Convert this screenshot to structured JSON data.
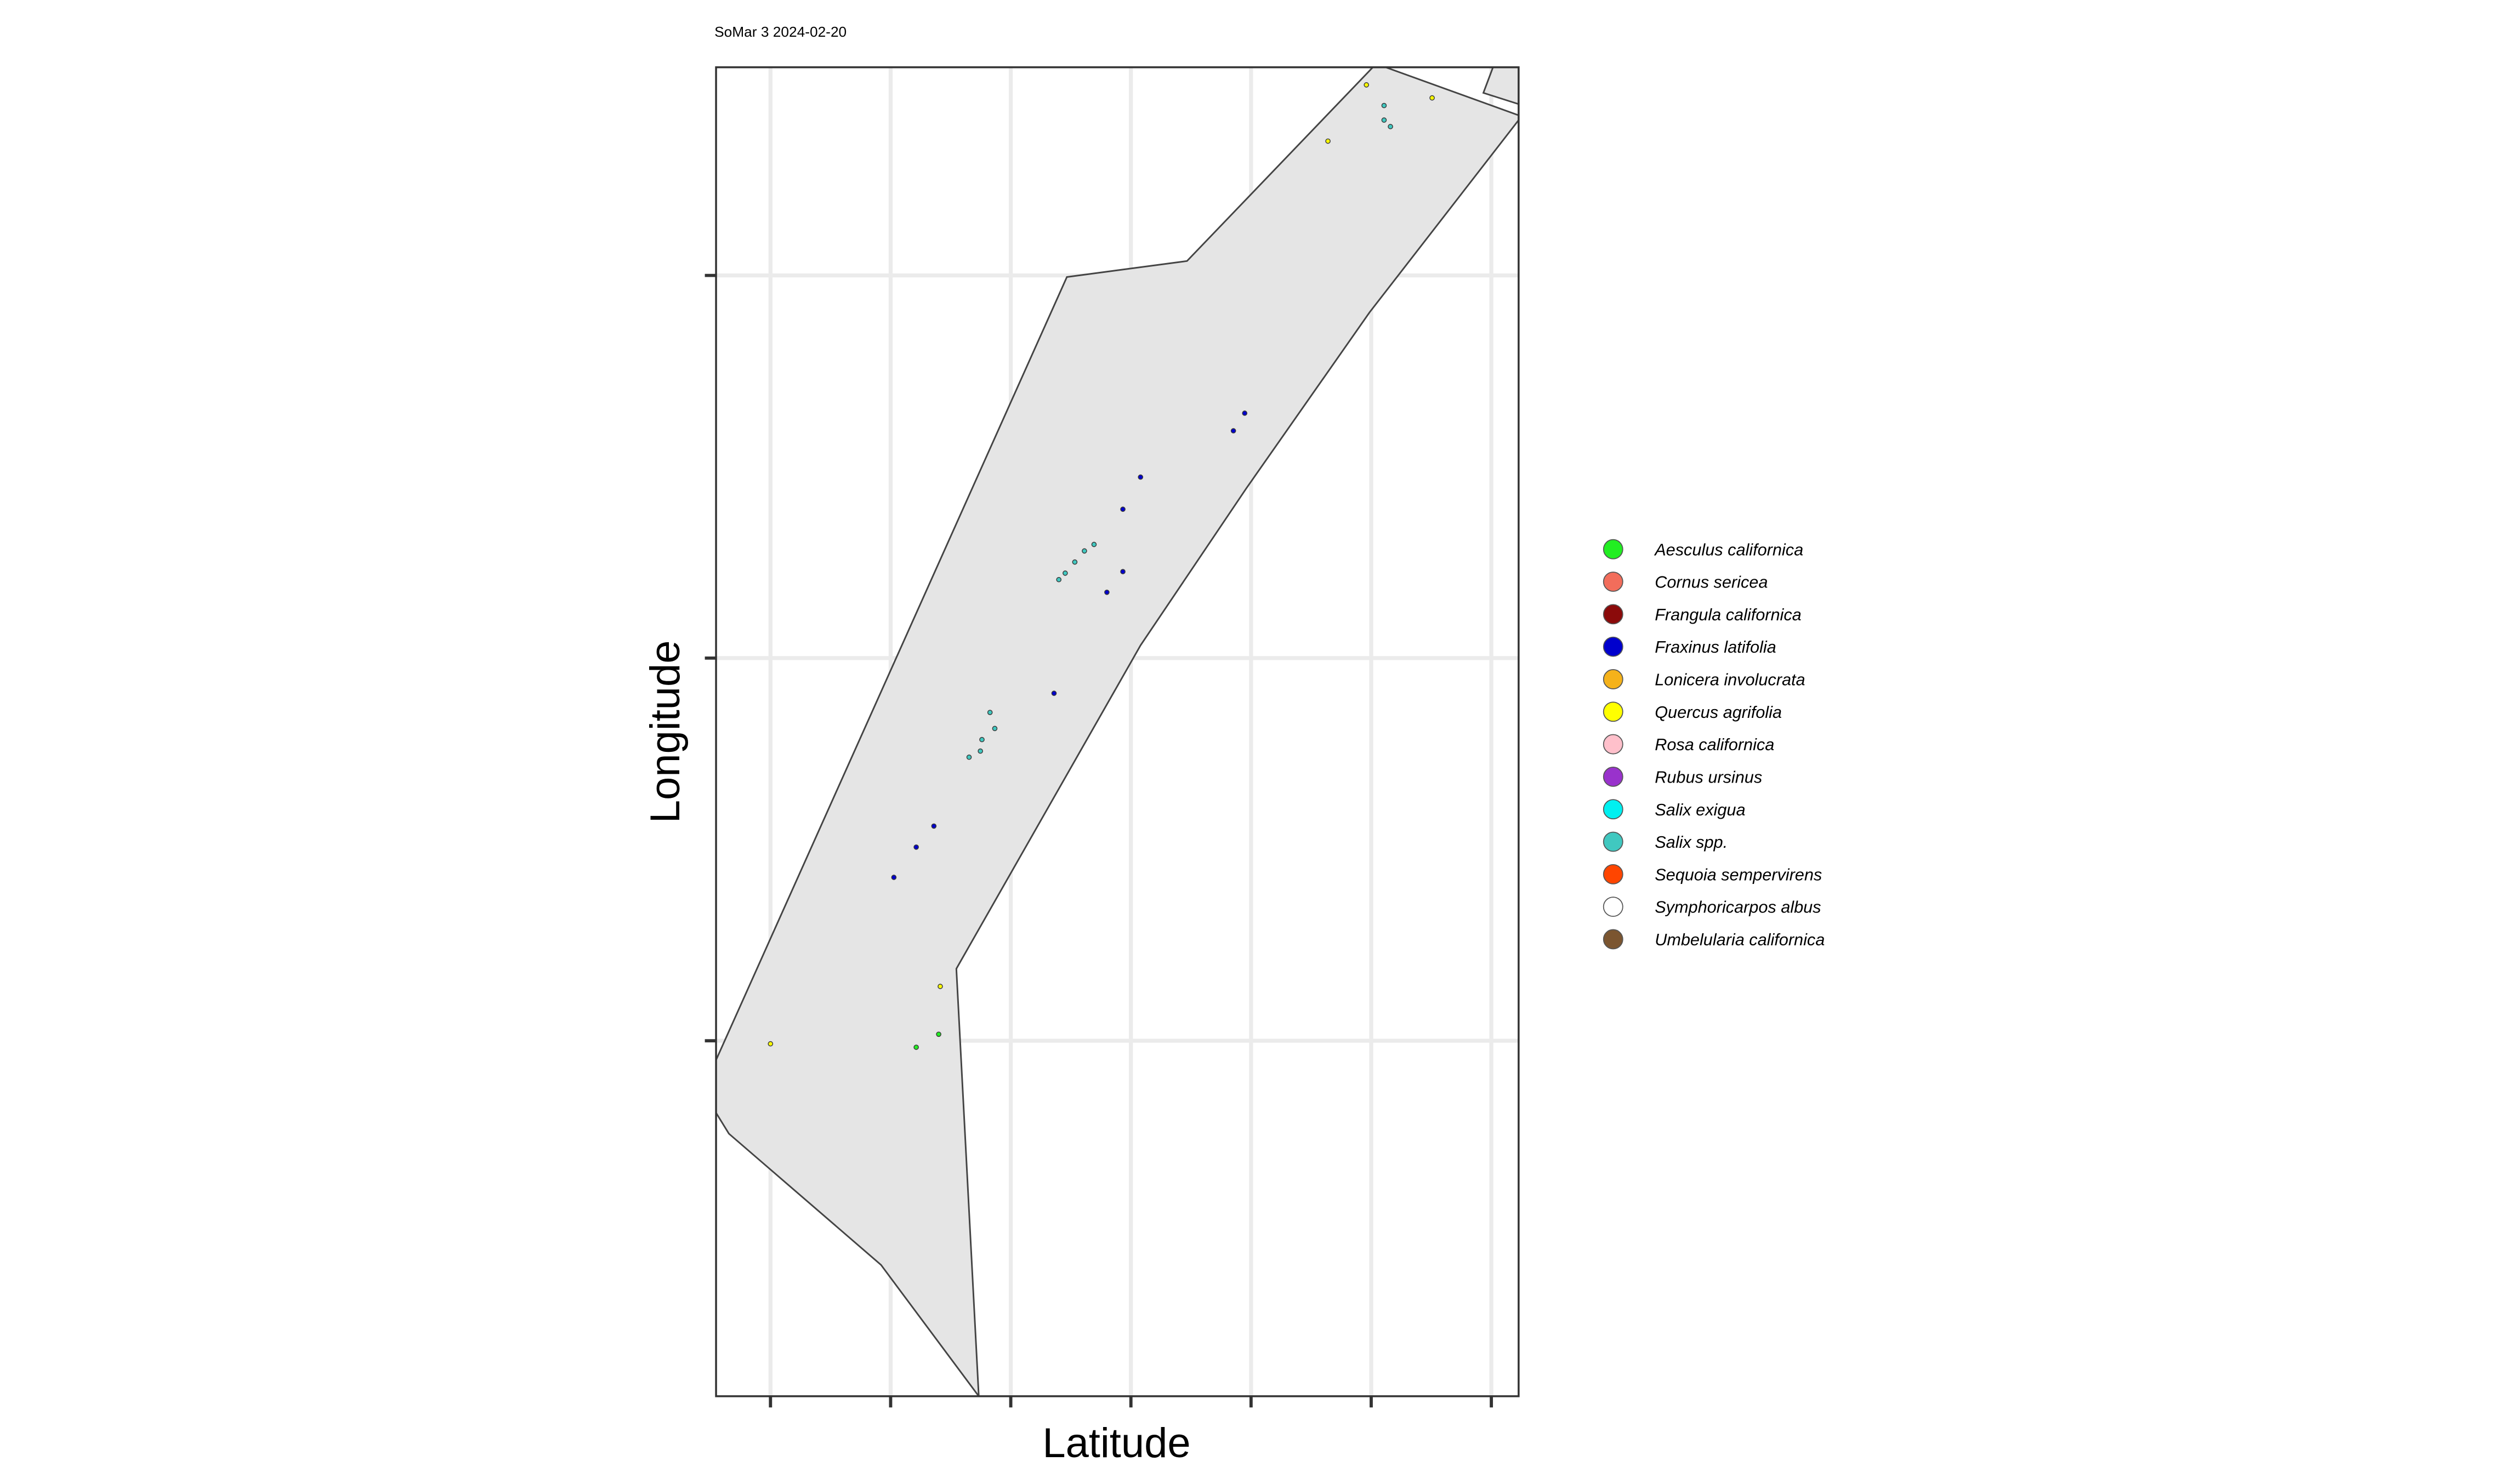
{
  "chart_data": {
    "type": "scatter",
    "title": "SoMar 3 2024-02-20",
    "x_label": "Latitude",
    "y_label": "Longitude",
    "xlim": [
      -0.453,
      6.227
    ],
    "ylim": [
      -0.929,
      2.544
    ],
    "xticks": [
      0,
      1,
      2,
      3,
      4,
      5,
      6
    ],
    "yticks": [
      0,
      1,
      2
    ],
    "grid": true,
    "legend": "right",
    "series": [
      {
        "name": "Aesculus californica",
        "color": "#22ee22",
        "x": [
          1.4,
          1.213
        ],
        "y": [
          0.017,
          -0.017
        ]
      },
      {
        "name": "Cornus sericea",
        "color": "#f26d5b",
        "x": [],
        "y": []
      },
      {
        "name": "Frangula californica",
        "color": "#8b0a0a",
        "x": [],
        "y": []
      },
      {
        "name": "Fraxinus latifolia",
        "color": "#0000cd",
        "x": [
          3.947,
          3.853,
          3.08,
          2.933,
          2.933,
          2.8,
          2.36,
          1.36,
          1.213,
          1.027
        ],
        "y": [
          1.64,
          1.594,
          1.473,
          1.389,
          1.226,
          1.172,
          0.908,
          0.561,
          0.506,
          0.427
        ]
      },
      {
        "name": "Lonicera involucrata",
        "color": "#f5b21a",
        "x": [],
        "y": []
      },
      {
        "name": "Quercus agrifolia",
        "color": "#ffff00",
        "x": [
          4.96,
          5.507,
          4.64,
          1.413,
          0
        ],
        "y": [
          2.498,
          2.464,
          2.351,
          0.142,
          -0.008
        ]
      },
      {
        "name": "Rosa californica",
        "color": "#ffc0cb",
        "x": [],
        "y": []
      },
      {
        "name": "Rubus ursinus",
        "color": "#9932cc",
        "x": [],
        "y": []
      },
      {
        "name": "Salix exigua",
        "color": "#00f0f0",
        "x": [],
        "y": []
      },
      {
        "name": "Salix spp.",
        "color": "#40c8c0",
        "x": [
          5.107,
          5.107,
          5.16,
          2.693,
          2.613,
          2.533,
          2.453,
          2.4,
          1.827,
          1.867,
          1.76,
          1.747,
          1.653
        ],
        "y": [
          2.444,
          2.406,
          2.389,
          1.297,
          1.28,
          1.251,
          1.222,
          1.205,
          0.858,
          0.816,
          0.787,
          0.757,
          0.741
        ]
      },
      {
        "name": "Sequoia sempervirens",
        "color": "#ff4500",
        "x": [],
        "y": []
      },
      {
        "name": "Symphoricarpos albus",
        "color": "#ffffff",
        "x": [],
        "y": []
      },
      {
        "name": "Umbelularia californica",
        "color": "#7b5530",
        "x": [],
        "y": []
      }
    ]
  }
}
